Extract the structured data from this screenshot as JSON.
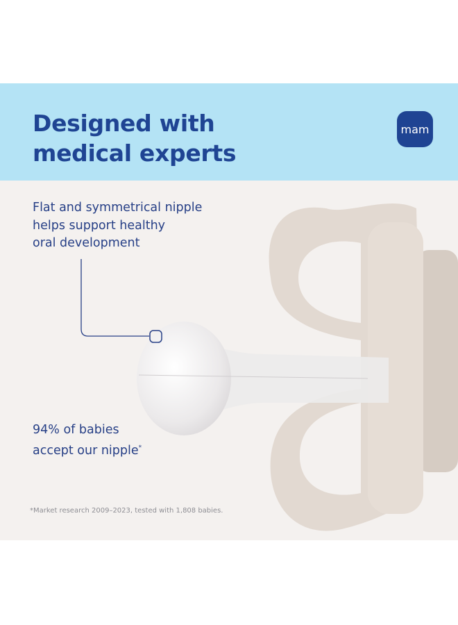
{
  "header": {
    "title_lines": [
      "Designed with",
      "medical experts"
    ],
    "logo_text": "mam"
  },
  "claims": {
    "nipple_shape_lines": [
      "Flat and symmetrical nipple",
      "helps support healthy",
      "oral development"
    ],
    "acceptance_lines": [
      "94% of babies",
      "accept our nipple"
    ],
    "acceptance_footnote_marker": "*"
  },
  "footnote": "*Market research 2009–2023, tested with 1,808 babies.",
  "colors": {
    "brand_blue": "#1f4493",
    "header_band": "#b4e3f5",
    "panel_background": "#f4f1ef",
    "pacifier_shield": "#e2d9d1"
  }
}
